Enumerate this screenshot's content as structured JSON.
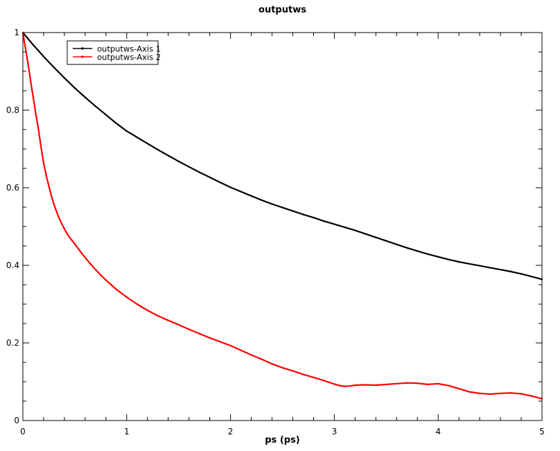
{
  "window": {
    "background": "#ffffff"
  },
  "chart_data": {
    "type": "line",
    "title": "outputws",
    "xlabel": "ps (ps)",
    "ylabel": "",
    "xlim": [
      0,
      5
    ],
    "ylim": [
      0,
      1
    ],
    "grid": false,
    "frame": "box-with-inward-ticks",
    "legend_position": "upper-left-inside",
    "x_major_ticks": [
      0,
      1,
      2,
      3,
      4,
      5
    ],
    "x_tick_labels": [
      "0",
      "1",
      "2",
      "3",
      "4",
      "5"
    ],
    "x_minor_step": 0.2,
    "y_major_ticks": [
      0,
      0.2,
      0.4,
      0.6,
      0.8,
      1
    ],
    "y_tick_labels": [
      "0",
      "0.2",
      "0.4",
      "0.6",
      "0.8",
      "1"
    ],
    "y_minor_step": 0.05,
    "series": [
      {
        "name": "outputws-Axis 1",
        "color": "#000000",
        "marker": "dot",
        "points": [
          [
            0,
            1
          ],
          [
            0.1,
            0.968
          ],
          [
            0.2,
            0.938
          ],
          [
            0.3,
            0.91
          ],
          [
            0.4,
            0.883
          ],
          [
            0.5,
            0.857
          ],
          [
            0.6,
            0.833
          ],
          [
            0.7,
            0.81
          ],
          [
            0.8,
            0.788
          ],
          [
            0.9,
            0.766
          ],
          [
            1,
            0.746
          ],
          [
            1.1,
            0.73
          ],
          [
            1.2,
            0.714
          ],
          [
            1.3,
            0.698
          ],
          [
            1.4,
            0.683
          ],
          [
            1.5,
            0.668
          ],
          [
            1.6,
            0.654
          ],
          [
            1.7,
            0.64
          ],
          [
            1.8,
            0.627
          ],
          [
            1.9,
            0.614
          ],
          [
            2,
            0.601
          ],
          [
            2.1,
            0.59
          ],
          [
            2.2,
            0.579
          ],
          [
            2.3,
            0.568
          ],
          [
            2.4,
            0.558
          ],
          [
            2.5,
            0.549
          ],
          [
            2.6,
            0.54
          ],
          [
            2.7,
            0.531
          ],
          [
            2.8,
            0.523
          ],
          [
            2.9,
            0.514
          ],
          [
            3,
            0.506
          ],
          [
            3.1,
            0.498
          ],
          [
            3.2,
            0.49
          ],
          [
            3.3,
            0.481
          ],
          [
            3.4,
            0.472
          ],
          [
            3.5,
            0.463
          ],
          [
            3.6,
            0.454
          ],
          [
            3.7,
            0.445
          ],
          [
            3.8,
            0.437
          ],
          [
            3.9,
            0.429
          ],
          [
            4,
            0.422
          ],
          [
            4.1,
            0.415
          ],
          [
            4.2,
            0.409
          ],
          [
            4.3,
            0.404
          ],
          [
            4.4,
            0.399
          ],
          [
            4.5,
            0.394
          ],
          [
            4.6,
            0.389
          ],
          [
            4.7,
            0.384
          ],
          [
            4.8,
            0.378
          ],
          [
            4.9,
            0.371
          ],
          [
            5,
            0.364
          ]
        ]
      },
      {
        "name": "outputws-Axis 2",
        "color": "#ff0000",
        "marker": "dot",
        "points": [
          [
            0,
            1
          ],
          [
            0.025,
            0.96
          ],
          [
            0.05,
            0.92
          ],
          [
            0.075,
            0.875
          ],
          [
            0.1,
            0.832
          ],
          [
            0.125,
            0.79
          ],
          [
            0.15,
            0.75
          ],
          [
            0.175,
            0.705
          ],
          [
            0.2,
            0.663
          ],
          [
            0.225,
            0.632
          ],
          [
            0.25,
            0.604
          ],
          [
            0.275,
            0.579
          ],
          [
            0.3,
            0.557
          ],
          [
            0.325,
            0.538
          ],
          [
            0.35,
            0.521
          ],
          [
            0.375,
            0.507
          ],
          [
            0.4,
            0.494
          ],
          [
            0.425,
            0.482
          ],
          [
            0.45,
            0.472
          ],
          [
            0.5,
            0.455
          ],
          [
            0.55,
            0.437
          ],
          [
            0.6,
            0.42
          ],
          [
            0.65,
            0.404
          ],
          [
            0.7,
            0.389
          ],
          [
            0.75,
            0.375
          ],
          [
            0.8,
            0.362
          ],
          [
            0.85,
            0.35
          ],
          [
            0.9,
            0.338
          ],
          [
            0.95,
            0.328
          ],
          [
            1,
            0.318
          ],
          [
            1.1,
            0.3
          ],
          [
            1.2,
            0.284
          ],
          [
            1.3,
            0.27
          ],
          [
            1.4,
            0.258
          ],
          [
            1.5,
            0.247
          ],
          [
            1.6,
            0.235
          ],
          [
            1.7,
            0.224
          ],
          [
            1.8,
            0.213
          ],
          [
            1.9,
            0.203
          ],
          [
            2,
            0.193
          ],
          [
            2.1,
            0.181
          ],
          [
            2.2,
            0.169
          ],
          [
            2.3,
            0.158
          ],
          [
            2.4,
            0.146
          ],
          [
            2.5,
            0.136
          ],
          [
            2.6,
            0.128
          ],
          [
            2.7,
            0.119
          ],
          [
            2.8,
            0.111
          ],
          [
            2.9,
            0.103
          ],
          [
            3,
            0.094
          ],
          [
            3.05,
            0.09
          ],
          [
            3.1,
            0.088
          ],
          [
            3.15,
            0.089
          ],
          [
            3.2,
            0.091
          ],
          [
            3.3,
            0.092
          ],
          [
            3.4,
            0.091
          ],
          [
            3.5,
            0.093
          ],
          [
            3.6,
            0.095
          ],
          [
            3.7,
            0.097
          ],
          [
            3.8,
            0.096
          ],
          [
            3.9,
            0.093
          ],
          [
            4,
            0.095
          ],
          [
            4.1,
            0.09
          ],
          [
            4.2,
            0.082
          ],
          [
            4.3,
            0.074
          ],
          [
            4.4,
            0.07
          ],
          [
            4.5,
            0.068
          ],
          [
            4.6,
            0.07
          ],
          [
            4.7,
            0.071
          ],
          [
            4.8,
            0.069
          ],
          [
            4.9,
            0.063
          ],
          [
            5,
            0.056
          ]
        ]
      }
    ]
  }
}
